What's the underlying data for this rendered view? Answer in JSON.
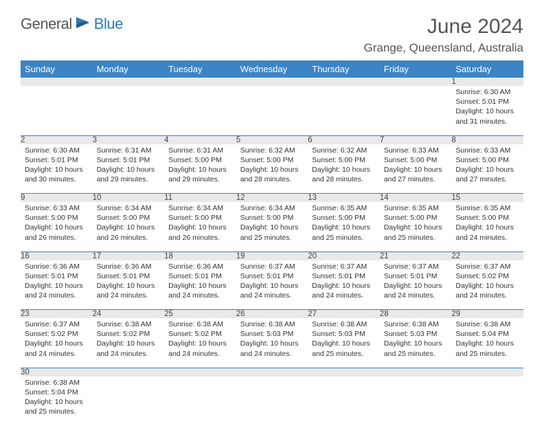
{
  "logo": {
    "part1": "General",
    "part2": "Blue"
  },
  "title": "June 2024",
  "location": "Grange, Queensland, Australia",
  "colors": {
    "header_bg": "#3d84c4",
    "header_text": "#ffffff",
    "daynum_bg": "#e9e9e9",
    "border": "#3d84c4",
    "logo_gray": "#555555",
    "logo_blue": "#2a7ab9"
  },
  "weekdays": [
    "Sunday",
    "Monday",
    "Tuesday",
    "Wednesday",
    "Thursday",
    "Friday",
    "Saturday"
  ],
  "weeks": [
    {
      "nums": [
        "",
        "",
        "",
        "",
        "",
        "",
        "1"
      ],
      "cells": [
        null,
        null,
        null,
        null,
        null,
        null,
        {
          "sunrise": "Sunrise: 6:30 AM",
          "sunset": "Sunset: 5:01 PM",
          "daylight1": "Daylight: 10 hours",
          "daylight2": "and 31 minutes."
        }
      ]
    },
    {
      "nums": [
        "2",
        "3",
        "4",
        "5",
        "6",
        "7",
        "8"
      ],
      "cells": [
        {
          "sunrise": "Sunrise: 6:30 AM",
          "sunset": "Sunset: 5:01 PM",
          "daylight1": "Daylight: 10 hours",
          "daylight2": "and 30 minutes."
        },
        {
          "sunrise": "Sunrise: 6:31 AM",
          "sunset": "Sunset: 5:01 PM",
          "daylight1": "Daylight: 10 hours",
          "daylight2": "and 29 minutes."
        },
        {
          "sunrise": "Sunrise: 6:31 AM",
          "sunset": "Sunset: 5:00 PM",
          "daylight1": "Daylight: 10 hours",
          "daylight2": "and 29 minutes."
        },
        {
          "sunrise": "Sunrise: 6:32 AM",
          "sunset": "Sunset: 5:00 PM",
          "daylight1": "Daylight: 10 hours",
          "daylight2": "and 28 minutes."
        },
        {
          "sunrise": "Sunrise: 6:32 AM",
          "sunset": "Sunset: 5:00 PM",
          "daylight1": "Daylight: 10 hours",
          "daylight2": "and 28 minutes."
        },
        {
          "sunrise": "Sunrise: 6:33 AM",
          "sunset": "Sunset: 5:00 PM",
          "daylight1": "Daylight: 10 hours",
          "daylight2": "and 27 minutes."
        },
        {
          "sunrise": "Sunrise: 6:33 AM",
          "sunset": "Sunset: 5:00 PM",
          "daylight1": "Daylight: 10 hours",
          "daylight2": "and 27 minutes."
        }
      ]
    },
    {
      "nums": [
        "9",
        "10",
        "11",
        "12",
        "13",
        "14",
        "15"
      ],
      "cells": [
        {
          "sunrise": "Sunrise: 6:33 AM",
          "sunset": "Sunset: 5:00 PM",
          "daylight1": "Daylight: 10 hours",
          "daylight2": "and 26 minutes."
        },
        {
          "sunrise": "Sunrise: 6:34 AM",
          "sunset": "Sunset: 5:00 PM",
          "daylight1": "Daylight: 10 hours",
          "daylight2": "and 26 minutes."
        },
        {
          "sunrise": "Sunrise: 6:34 AM",
          "sunset": "Sunset: 5:00 PM",
          "daylight1": "Daylight: 10 hours",
          "daylight2": "and 26 minutes."
        },
        {
          "sunrise": "Sunrise: 6:34 AM",
          "sunset": "Sunset: 5:00 PM",
          "daylight1": "Daylight: 10 hours",
          "daylight2": "and 25 minutes."
        },
        {
          "sunrise": "Sunrise: 6:35 AM",
          "sunset": "Sunset: 5:00 PM",
          "daylight1": "Daylight: 10 hours",
          "daylight2": "and 25 minutes."
        },
        {
          "sunrise": "Sunrise: 6:35 AM",
          "sunset": "Sunset: 5:00 PM",
          "daylight1": "Daylight: 10 hours",
          "daylight2": "and 25 minutes."
        },
        {
          "sunrise": "Sunrise: 6:35 AM",
          "sunset": "Sunset: 5:00 PM",
          "daylight1": "Daylight: 10 hours",
          "daylight2": "and 24 minutes."
        }
      ]
    },
    {
      "nums": [
        "16",
        "17",
        "18",
        "19",
        "20",
        "21",
        "22"
      ],
      "cells": [
        {
          "sunrise": "Sunrise: 6:36 AM",
          "sunset": "Sunset: 5:01 PM",
          "daylight1": "Daylight: 10 hours",
          "daylight2": "and 24 minutes."
        },
        {
          "sunrise": "Sunrise: 6:36 AM",
          "sunset": "Sunset: 5:01 PM",
          "daylight1": "Daylight: 10 hours",
          "daylight2": "and 24 minutes."
        },
        {
          "sunrise": "Sunrise: 6:36 AM",
          "sunset": "Sunset: 5:01 PM",
          "daylight1": "Daylight: 10 hours",
          "daylight2": "and 24 minutes."
        },
        {
          "sunrise": "Sunrise: 6:37 AM",
          "sunset": "Sunset: 5:01 PM",
          "daylight1": "Daylight: 10 hours",
          "daylight2": "and 24 minutes."
        },
        {
          "sunrise": "Sunrise: 6:37 AM",
          "sunset": "Sunset: 5:01 PM",
          "daylight1": "Daylight: 10 hours",
          "daylight2": "and 24 minutes."
        },
        {
          "sunrise": "Sunrise: 6:37 AM",
          "sunset": "Sunset: 5:01 PM",
          "daylight1": "Daylight: 10 hours",
          "daylight2": "and 24 minutes."
        },
        {
          "sunrise": "Sunrise: 6:37 AM",
          "sunset": "Sunset: 5:02 PM",
          "daylight1": "Daylight: 10 hours",
          "daylight2": "and 24 minutes."
        }
      ]
    },
    {
      "nums": [
        "23",
        "24",
        "25",
        "26",
        "27",
        "28",
        "29"
      ],
      "cells": [
        {
          "sunrise": "Sunrise: 6:37 AM",
          "sunset": "Sunset: 5:02 PM",
          "daylight1": "Daylight: 10 hours",
          "daylight2": "and 24 minutes."
        },
        {
          "sunrise": "Sunrise: 6:38 AM",
          "sunset": "Sunset: 5:02 PM",
          "daylight1": "Daylight: 10 hours",
          "daylight2": "and 24 minutes."
        },
        {
          "sunrise": "Sunrise: 6:38 AM",
          "sunset": "Sunset: 5:02 PM",
          "daylight1": "Daylight: 10 hours",
          "daylight2": "and 24 minutes."
        },
        {
          "sunrise": "Sunrise: 6:38 AM",
          "sunset": "Sunset: 5:03 PM",
          "daylight1": "Daylight: 10 hours",
          "daylight2": "and 24 minutes."
        },
        {
          "sunrise": "Sunrise: 6:38 AM",
          "sunset": "Sunset: 5:03 PM",
          "daylight1": "Daylight: 10 hours",
          "daylight2": "and 25 minutes."
        },
        {
          "sunrise": "Sunrise: 6:38 AM",
          "sunset": "Sunset: 5:03 PM",
          "daylight1": "Daylight: 10 hours",
          "daylight2": "and 25 minutes."
        },
        {
          "sunrise": "Sunrise: 6:38 AM",
          "sunset": "Sunset: 5:04 PM",
          "daylight1": "Daylight: 10 hours",
          "daylight2": "and 25 minutes."
        }
      ]
    },
    {
      "nums": [
        "30",
        "",
        "",
        "",
        "",
        "",
        ""
      ],
      "cells": [
        {
          "sunrise": "Sunrise: 6:38 AM",
          "sunset": "Sunset: 5:04 PM",
          "daylight1": "Daylight: 10 hours",
          "daylight2": "and 25 minutes."
        },
        null,
        null,
        null,
        null,
        null,
        null
      ]
    }
  ]
}
